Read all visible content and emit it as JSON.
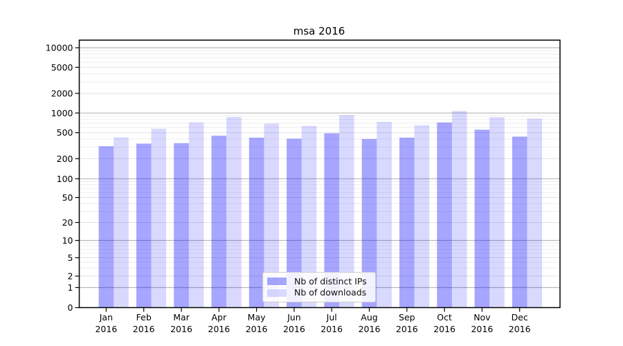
{
  "figure": {
    "background": "#ffffff",
    "axes_edge_color": "#000000",
    "grid_major_color": "#b8b8b8",
    "grid_sub_color": "#e2e2e2",
    "grid_minor_color": "#eeeeee"
  },
  "chart_data": {
    "type": "bar",
    "title": "msa 2016",
    "xlabel": "",
    "ylabel": "",
    "yscale": "symlog",
    "grid": true,
    "ylim": [
      0,
      13000
    ],
    "yticks": [
      0,
      1,
      2,
      5,
      10,
      20,
      50,
      100,
      200,
      500,
      1000,
      2000,
      5000,
      10000
    ],
    "categories": [
      "Jan",
      "Feb",
      "Mar",
      "Apr",
      "May",
      "Jun",
      "Jul",
      "Aug",
      "Sep",
      "Oct",
      "Nov",
      "Dec"
    ],
    "category_year": "2016",
    "series": [
      {
        "name": "Nb of distinct IPs",
        "color": "#0000ff",
        "alpha": 0.35,
        "blended_hex": "#a6a6ff",
        "values": [
          310,
          340,
          345,
          450,
          420,
          405,
          490,
          400,
          420,
          715,
          555,
          435
        ]
      },
      {
        "name": "Nb of downloads",
        "color": "#0000ff",
        "alpha": 0.15,
        "blended_hex": "#d9d9ff",
        "values": [
          425,
          575,
          720,
          870,
          690,
          635,
          935,
          730,
          650,
          1075,
          865,
          820
        ]
      }
    ],
    "legend_position": "lower-center-inside"
  }
}
